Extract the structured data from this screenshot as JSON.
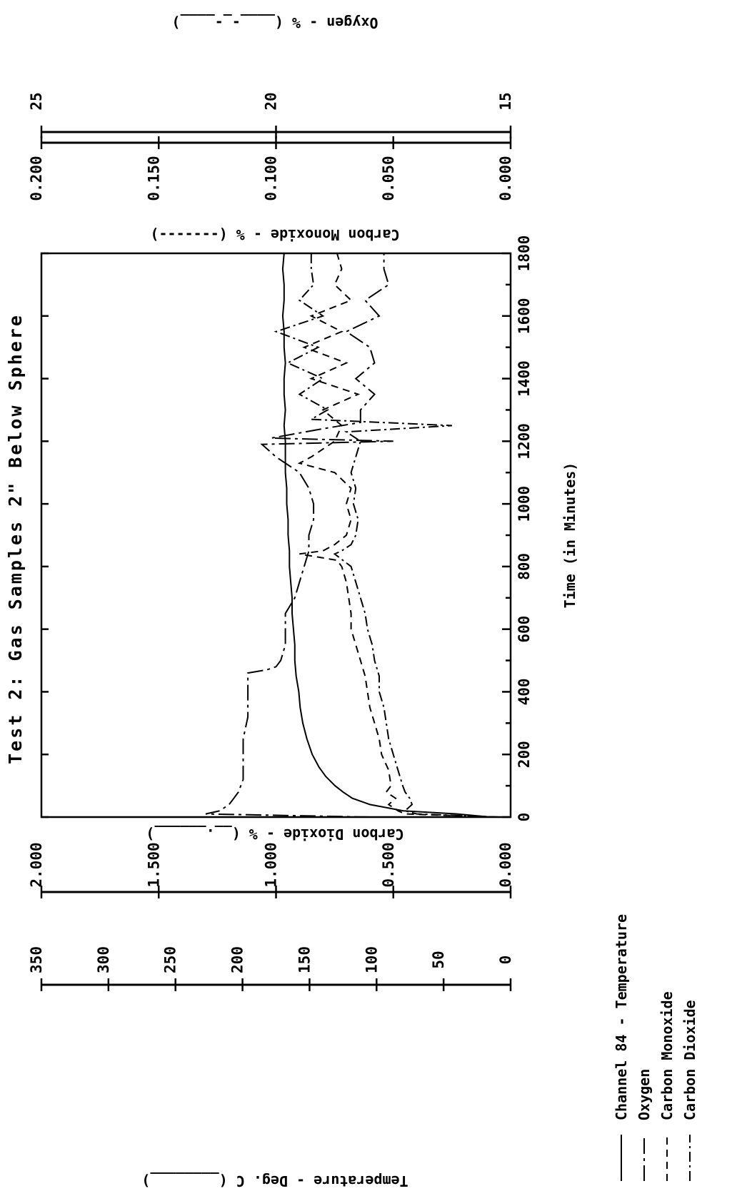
{
  "chart_data": {
    "type": "line",
    "title": "Test 2: Gas Samples 2\" Below Sphere",
    "xlabel": "Time (in Minutes)",
    "xlim": [
      0,
      1800
    ],
    "x_ticks": [
      "0",
      "200",
      "400",
      "600",
      "800",
      "1000",
      "1200",
      "1400",
      "1600",
      "1800"
    ],
    "axes": {
      "temperature": {
        "label": "Temperature - Deg. C",
        "legend_key": "(________)",
        "range": [
          0,
          350
        ],
        "ticks": [
          "0",
          "50",
          "100",
          "150",
          "200",
          "250",
          "300",
          "350"
        ]
      },
      "carbon_dioxide": {
        "label": "Carbon Dioxide - %",
        "legend_key": "(__.______)",
        "range": [
          0,
          2
        ],
        "ticks": [
          "0.000",
          "0.500",
          "1.000",
          "1.500",
          "2.000"
        ]
      },
      "carbon_monoxide": {
        "label": "Carbon Monoxide - %",
        "legend_key": "(-------)",
        "range": [
          0,
          0.2
        ],
        "ticks": [
          "0.000",
          "0.050",
          "0.100",
          "0.150",
          "0.200"
        ]
      },
      "oxygen": {
        "label": "Oxygen - %",
        "legend_key": "(____-_-____)",
        "range": [
          15,
          25
        ],
        "ticks": [
          "15",
          "20",
          "25"
        ]
      }
    },
    "legend": [
      {
        "label": "Channel 84 - Temperature",
        "style": "solid"
      },
      {
        "label": "Oxygen",
        "style": "long-dash-dot"
      },
      {
        "label": "Carbon Monoxide",
        "style": "dashed"
      },
      {
        "label": "Carbon Dioxide",
        "style": "dash-dot"
      }
    ],
    "series": [
      {
        "name": "Channel 84 - Temperature",
        "axis": "temperature",
        "style": "solid",
        "x": [
          0,
          10,
          20,
          40,
          60,
          80,
          100,
          130,
          160,
          200,
          250,
          300,
          350,
          400,
          450,
          500,
          550,
          600,
          650,
          700,
          750,
          800,
          850,
          900,
          950,
          1000,
          1050,
          1100,
          1150,
          1200,
          1250,
          1300,
          1350,
          1400,
          1450,
          1500,
          1550,
          1600,
          1650,
          1700,
          1750,
          1800
        ],
        "y": [
          15,
          40,
          80,
          105,
          118,
          125,
          131,
          138,
          143,
          148,
          152,
          155,
          157,
          158,
          160,
          161,
          161,
          162,
          163,
          163,
          164,
          165,
          165,
          166,
          166,
          167,
          167,
          168,
          168,
          168,
          169,
          168,
          169,
          169,
          168,
          169,
          169,
          170,
          169,
          169,
          170,
          169
        ]
      },
      {
        "name": "Oxygen",
        "axis": "oxygen",
        "style": "long-dash-dot",
        "x": [
          0,
          10,
          20,
          40,
          60,
          80,
          120,
          180,
          250,
          320,
          400,
          460,
          470,
          480,
          500,
          550,
          600,
          650,
          700,
          750,
          800,
          850,
          900,
          950,
          1000,
          1050,
          1100,
          1150,
          1190,
          1200,
          1210,
          1240,
          1260,
          1300,
          1350,
          1400,
          1450,
          1500,
          1550,
          1600,
          1650,
          1700,
          1750,
          1800
        ],
        "y": [
          18,
          21.5,
          21.2,
          21.0,
          20.9,
          20.8,
          20.7,
          20.7,
          20.7,
          20.6,
          20.6,
          20.6,
          20.2,
          20.0,
          19.9,
          19.8,
          19.8,
          19.8,
          19.6,
          19.5,
          19.4,
          19.3,
          19.3,
          19.2,
          19.2,
          19.3,
          19.5,
          20.0,
          20.3,
          17.5,
          20.1,
          19.0,
          18.2,
          18.2,
          17.9,
          18.3,
          17.9,
          18.0,
          18.5,
          17.8,
          18.1,
          17.6,
          17.7,
          17.7
        ]
      },
      {
        "name": "Carbon Monoxide",
        "axis": "carbon_monoxide",
        "style": "dashed",
        "x": [
          0,
          10,
          20,
          40,
          60,
          80,
          100,
          150,
          200,
          250,
          300,
          350,
          400,
          450,
          500,
          550,
          600,
          650,
          700,
          750,
          800,
          820,
          840,
          850,
          870,
          900,
          950,
          1000,
          1050,
          1100,
          1130,
          1150,
          1200,
          1250,
          1300,
          1350,
          1400,
          1450,
          1500,
          1550,
          1600,
          1650,
          1700,
          1750,
          1800
        ],
        "y": [
          0.005,
          0.045,
          0.048,
          0.052,
          0.049,
          0.053,
          0.051,
          0.052,
          0.055,
          0.056,
          0.058,
          0.06,
          0.061,
          0.062,
          0.064,
          0.066,
          0.068,
          0.068,
          0.069,
          0.07,
          0.072,
          0.074,
          0.09,
          0.08,
          0.075,
          0.07,
          0.068,
          0.07,
          0.068,
          0.075,
          0.09,
          0.085,
          0.075,
          0.072,
          0.08,
          0.065,
          0.085,
          0.07,
          0.088,
          0.072,
          0.085,
          0.068,
          0.075,
          0.072,
          0.074
        ]
      },
      {
        "name": "Carbon Dioxide",
        "axis": "carbon_dioxide",
        "style": "dash-dot",
        "x": [
          0,
          10,
          20,
          40,
          60,
          80,
          100,
          150,
          200,
          250,
          300,
          350,
          400,
          450,
          500,
          550,
          600,
          650,
          700,
          750,
          800,
          840,
          850,
          870,
          900,
          950,
          1000,
          1050,
          1100,
          1150,
          1200,
          1230,
          1250,
          1270,
          1300,
          1350,
          1400,
          1450,
          1500,
          1550,
          1600,
          1650,
          1700,
          1750,
          1800
        ],
        "y": [
          0.05,
          0.4,
          0.45,
          0.42,
          0.43,
          0.45,
          0.46,
          0.48,
          0.5,
          0.52,
          0.53,
          0.54,
          0.56,
          0.56,
          0.58,
          0.59,
          0.61,
          0.62,
          0.64,
          0.66,
          0.68,
          0.75,
          0.72,
          0.68,
          0.66,
          0.65,
          0.67,
          0.66,
          0.68,
          0.66,
          0.64,
          0.7,
          0.25,
          0.85,
          0.78,
          0.9,
          0.8,
          0.95,
          0.82,
          1.0,
          0.8,
          0.9,
          0.84,
          0.85,
          0.85
        ]
      }
    ]
  }
}
